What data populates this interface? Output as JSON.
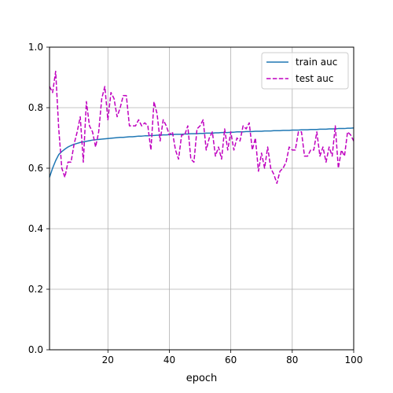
{
  "chart_data": {
    "type": "line",
    "title": "",
    "xlabel": "epoch",
    "ylabel": "",
    "xlim": [
      1,
      100
    ],
    "ylim": [
      0.0,
      1.0
    ],
    "x_ticks": [
      20,
      40,
      60,
      80,
      100
    ],
    "x_tick_labels": [
      "20",
      "40",
      "60",
      "80",
      "100"
    ],
    "y_ticks": [
      0.0,
      0.2,
      0.4,
      0.6,
      0.8,
      1.0
    ],
    "y_tick_labels": [
      "0.0",
      "0.2",
      "0.4",
      "0.6",
      "0.8",
      "1.0"
    ],
    "grid": true,
    "legend_position": "top-right",
    "series": [
      {
        "name": "train auc",
        "color": "#1f77b4",
        "style": "solid",
        "x": [
          1,
          2,
          3,
          4,
          5,
          6,
          7,
          8,
          9,
          10,
          11,
          12,
          13,
          14,
          15,
          16,
          17,
          18,
          19,
          20,
          21,
          22,
          23,
          24,
          25,
          26,
          27,
          28,
          29,
          30,
          31,
          32,
          33,
          34,
          35,
          36,
          37,
          38,
          39,
          40,
          41,
          42,
          43,
          44,
          45,
          46,
          47,
          48,
          49,
          50,
          51,
          52,
          53,
          54,
          55,
          56,
          57,
          58,
          59,
          60,
          61,
          62,
          63,
          64,
          65,
          66,
          67,
          68,
          69,
          70,
          71,
          72,
          73,
          74,
          75,
          76,
          77,
          78,
          79,
          80,
          81,
          82,
          83,
          84,
          85,
          86,
          87,
          88,
          89,
          90,
          91,
          92,
          93,
          94,
          95,
          96,
          97,
          98,
          99,
          100
        ],
        "values": [
          0.57,
          0.6,
          0.625,
          0.645,
          0.655,
          0.663,
          0.67,
          0.675,
          0.679,
          0.682,
          0.685,
          0.687,
          0.689,
          0.691,
          0.693,
          0.694,
          0.695,
          0.696,
          0.697,
          0.698,
          0.699,
          0.7,
          0.701,
          0.702,
          0.702,
          0.703,
          0.704,
          0.704,
          0.705,
          0.706,
          0.706,
          0.707,
          0.707,
          0.708,
          0.708,
          0.709,
          0.709,
          0.71,
          0.71,
          0.711,
          0.711,
          0.712,
          0.712,
          0.712,
          0.713,
          0.713,
          0.714,
          0.714,
          0.714,
          0.715,
          0.715,
          0.716,
          0.716,
          0.716,
          0.717,
          0.717,
          0.718,
          0.718,
          0.718,
          0.719,
          0.719,
          0.72,
          0.72,
          0.72,
          0.721,
          0.721,
          0.721,
          0.722,
          0.722,
          0.722,
          0.723,
          0.723,
          0.723,
          0.724,
          0.724,
          0.724,
          0.725,
          0.725,
          0.725,
          0.726,
          0.726,
          0.726,
          0.727,
          0.727,
          0.727,
          0.728,
          0.728,
          0.728,
          0.729,
          0.729,
          0.729,
          0.73,
          0.73,
          0.73,
          0.731,
          0.731,
          0.731,
          0.732,
          0.732,
          0.733
        ]
      },
      {
        "name": "test auc",
        "color": "#bf00bf",
        "style": "dashed",
        "x": [
          1,
          2,
          3,
          4,
          5,
          6,
          7,
          8,
          9,
          10,
          11,
          12,
          13,
          14,
          15,
          16,
          17,
          18,
          19,
          20,
          21,
          22,
          23,
          24,
          25,
          26,
          27,
          28,
          29,
          30,
          31,
          32,
          33,
          34,
          35,
          36,
          37,
          38,
          39,
          40,
          41,
          42,
          43,
          44,
          45,
          46,
          47,
          48,
          49,
          50,
          51,
          52,
          53,
          54,
          55,
          56,
          57,
          58,
          59,
          60,
          61,
          62,
          63,
          64,
          65,
          66,
          67,
          68,
          69,
          70,
          71,
          72,
          73,
          74,
          75,
          76,
          77,
          78,
          79,
          80,
          81,
          82,
          83,
          84,
          85,
          86,
          87,
          88,
          89,
          90,
          91,
          92,
          93,
          94,
          95,
          96,
          97,
          98,
          99,
          100
        ],
        "values": [
          0.87,
          0.85,
          0.92,
          0.73,
          0.6,
          0.57,
          0.62,
          0.62,
          0.68,
          0.72,
          0.77,
          0.62,
          0.82,
          0.74,
          0.72,
          0.67,
          0.72,
          0.83,
          0.87,
          0.76,
          0.85,
          0.83,
          0.77,
          0.8,
          0.84,
          0.84,
          0.74,
          0.74,
          0.74,
          0.76,
          0.74,
          0.75,
          0.74,
          0.66,
          0.82,
          0.78,
          0.69,
          0.76,
          0.74,
          0.71,
          0.72,
          0.66,
          0.63,
          0.71,
          0.71,
          0.74,
          0.63,
          0.62,
          0.73,
          0.74,
          0.76,
          0.66,
          0.7,
          0.72,
          0.64,
          0.67,
          0.63,
          0.73,
          0.66,
          0.72,
          0.66,
          0.7,
          0.69,
          0.74,
          0.73,
          0.75,
          0.66,
          0.7,
          0.59,
          0.65,
          0.6,
          0.67,
          0.6,
          0.58,
          0.55,
          0.59,
          0.6,
          0.62,
          0.67,
          0.66,
          0.66,
          0.72,
          0.72,
          0.64,
          0.64,
          0.66,
          0.66,
          0.72,
          0.64,
          0.67,
          0.62,
          0.67,
          0.64,
          0.74,
          0.6,
          0.66,
          0.64,
          0.72,
          0.71,
          0.69
        ]
      }
    ]
  }
}
